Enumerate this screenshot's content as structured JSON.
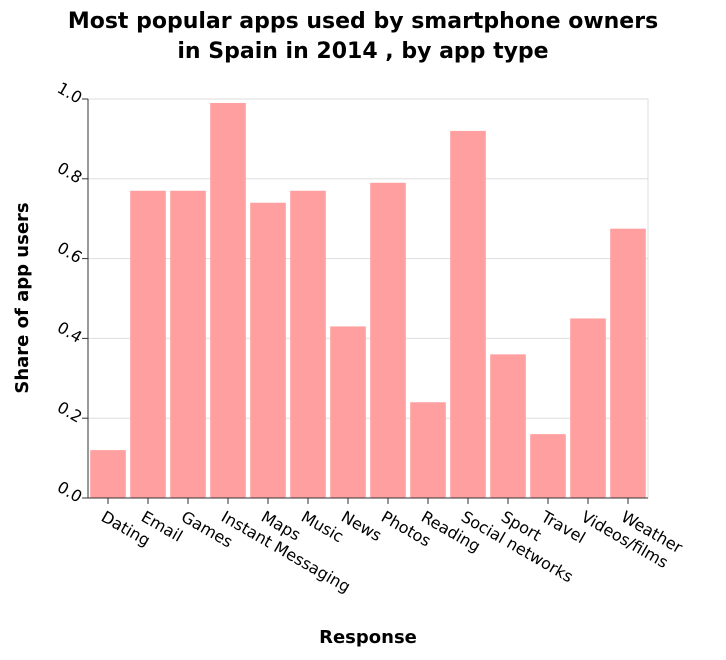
{
  "chart_data": {
    "type": "bar",
    "title": [
      "Most popular apps used by smartphone owners",
      "in Spain in 2014 , by app type"
    ],
    "xlabel": "Response",
    "ylabel": "Share of app users",
    "categories": [
      "Dating",
      "Email",
      "Games",
      "Instant Messaging",
      "Maps",
      "Music",
      "News",
      "Photos",
      "Reading",
      "Social networks",
      "Sport",
      "Travel",
      "Videos/films",
      "Weather"
    ],
    "values": [
      0.12,
      0.77,
      0.77,
      0.99,
      0.74,
      0.77,
      0.43,
      0.79,
      0.24,
      0.92,
      0.36,
      0.16,
      0.45,
      0.675
    ],
    "ylim": [
      0,
      1
    ],
    "yticks": [
      "0.0",
      "0.2",
      "0.4",
      "0.6",
      "0.8",
      "1.0"
    ],
    "ytick_values": [
      0,
      0.2,
      0.4,
      0.6,
      0.8,
      1.0
    ],
    "grid": true,
    "bar_color": "#ff9f9f"
  }
}
